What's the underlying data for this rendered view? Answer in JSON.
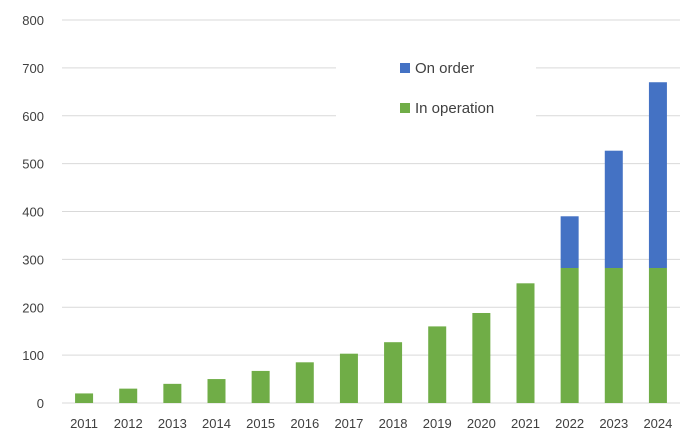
{
  "chart_data": {
    "type": "bar",
    "stacked": true,
    "title": "",
    "xlabel": "",
    "ylabel": "",
    "ylim": [
      0,
      800
    ],
    "yticks": [
      0,
      100,
      200,
      300,
      400,
      500,
      600,
      700,
      800
    ],
    "grid": true,
    "legend_position": "top-right",
    "categories": [
      "2011",
      "2012",
      "2013",
      "2014",
      "2015",
      "2016",
      "2017",
      "2018",
      "2019",
      "2020",
      "2021",
      "2022",
      "2023",
      "2024"
    ],
    "series": [
      {
        "name": "In operation",
        "color": "#70ad47",
        "values": [
          20,
          30,
          40,
          50,
          67,
          85,
          103,
          127,
          160,
          188,
          250,
          282,
          282,
          282
        ]
      },
      {
        "name": "On order",
        "color": "#4472c4",
        "values": [
          0,
          0,
          0,
          0,
          0,
          0,
          0,
          0,
          0,
          0,
          0,
          108,
          245,
          388
        ]
      }
    ],
    "legend_order": [
      "On order",
      "In operation"
    ]
  }
}
